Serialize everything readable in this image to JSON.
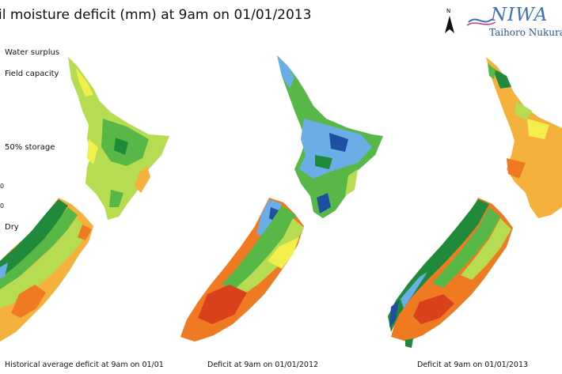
{
  "title": "il moisture deficit (mm) at  9am on 01/01/2013",
  "legend": {
    "labels": [
      "Water surplus",
      "Field capacity",
      "50% storage",
      "Dry"
    ],
    "ticks": [
      "0",
      "0"
    ]
  },
  "north_label": "N",
  "logo": {
    "name": "NIWA",
    "subtitle": "Taihoro Nukurang"
  },
  "maps": [
    {
      "caption": "Historical average deficit at 9am on 01/01"
    },
    {
      "caption": "Deficit at 9am on 01/01/2012"
    },
    {
      "caption": "Deficit at 9am on 01/01/2013"
    }
  ],
  "colors": {
    "surplus_dark": "#1e4fa0",
    "surplus": "#6aaee8",
    "field_capacity": "#1f8a3a",
    "moist": "#57b848",
    "mid": "#b6dc52",
    "half": "#f2ee4a",
    "dryish": "#f4b23c",
    "dry": "#ef7a22",
    "very_dry": "#d9401c"
  }
}
